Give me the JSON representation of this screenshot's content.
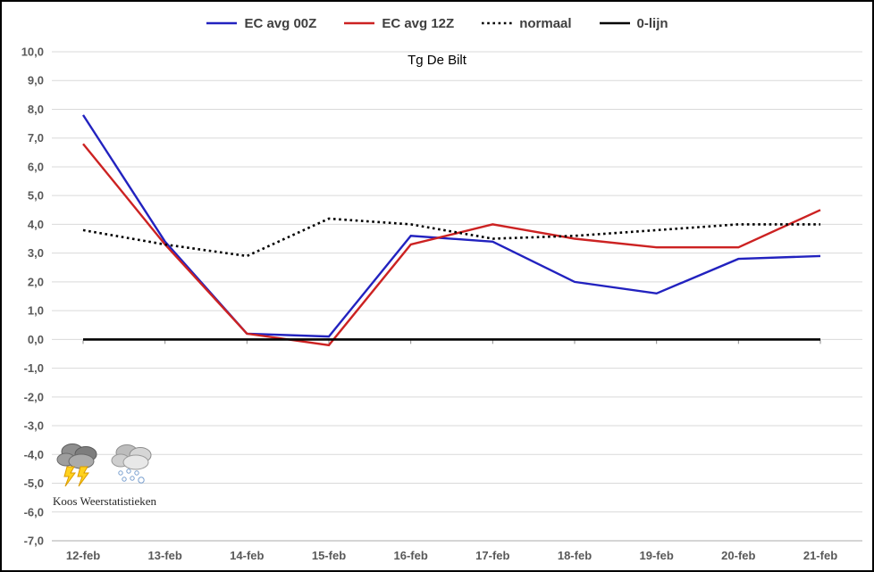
{
  "chart_data": {
    "type": "line",
    "title": "Tg De Bilt",
    "xlabel": "",
    "ylabel": "",
    "categories": [
      "12-feb",
      "13-feb",
      "14-feb",
      "15-feb",
      "16-feb",
      "17-feb",
      "18-feb",
      "19-feb",
      "20-feb",
      "21-feb"
    ],
    "series": [
      {
        "name": "EC avg 00Z",
        "color": "#2222bf",
        "style": "solid",
        "values": [
          7.8,
          3.4,
          0.2,
          0.1,
          3.6,
          3.4,
          2.0,
          1.6,
          2.8,
          2.9
        ]
      },
      {
        "name": "EC avg 12Z",
        "color": "#cc2222",
        "style": "solid",
        "values": [
          6.8,
          3.3,
          0.2,
          -0.2,
          3.3,
          4.0,
          3.5,
          3.2,
          3.2,
          4.5
        ]
      },
      {
        "name": "normaal",
        "color": "#000000",
        "style": "dotted",
        "values": [
          3.8,
          3.3,
          2.9,
          4.2,
          4.0,
          3.5,
          3.6,
          3.8,
          4.0,
          4.0
        ]
      },
      {
        "name": "0-lijn",
        "color": "#000000",
        "style": "solid",
        "values": [
          0,
          0,
          0,
          0,
          0,
          0,
          0,
          0,
          0,
          0
        ]
      }
    ],
    "ylim": [
      -7,
      10
    ],
    "ytick_step": 1,
    "yticks": [
      "10,0",
      "9,0",
      "8,0",
      "7,0",
      "6,0",
      "5,0",
      "4,0",
      "3,0",
      "2,0",
      "1,0",
      "0,0",
      "-1,0",
      "-2,0",
      "-3,0",
      "-4,0",
      "-5,0",
      "-6,0",
      "-7,0"
    ],
    "grid": "horizontal",
    "legend_position": "top",
    "colors": {
      "gridline": "#d9d9d9",
      "axis_line": "#ababab",
      "tick_label": "#595959",
      "legend_text": "#3f3f3f"
    }
  },
  "watermark": {
    "credit": "Koos Weerstatistieken",
    "icons": [
      "thunderstorm-icon",
      "snow-icon"
    ]
  }
}
